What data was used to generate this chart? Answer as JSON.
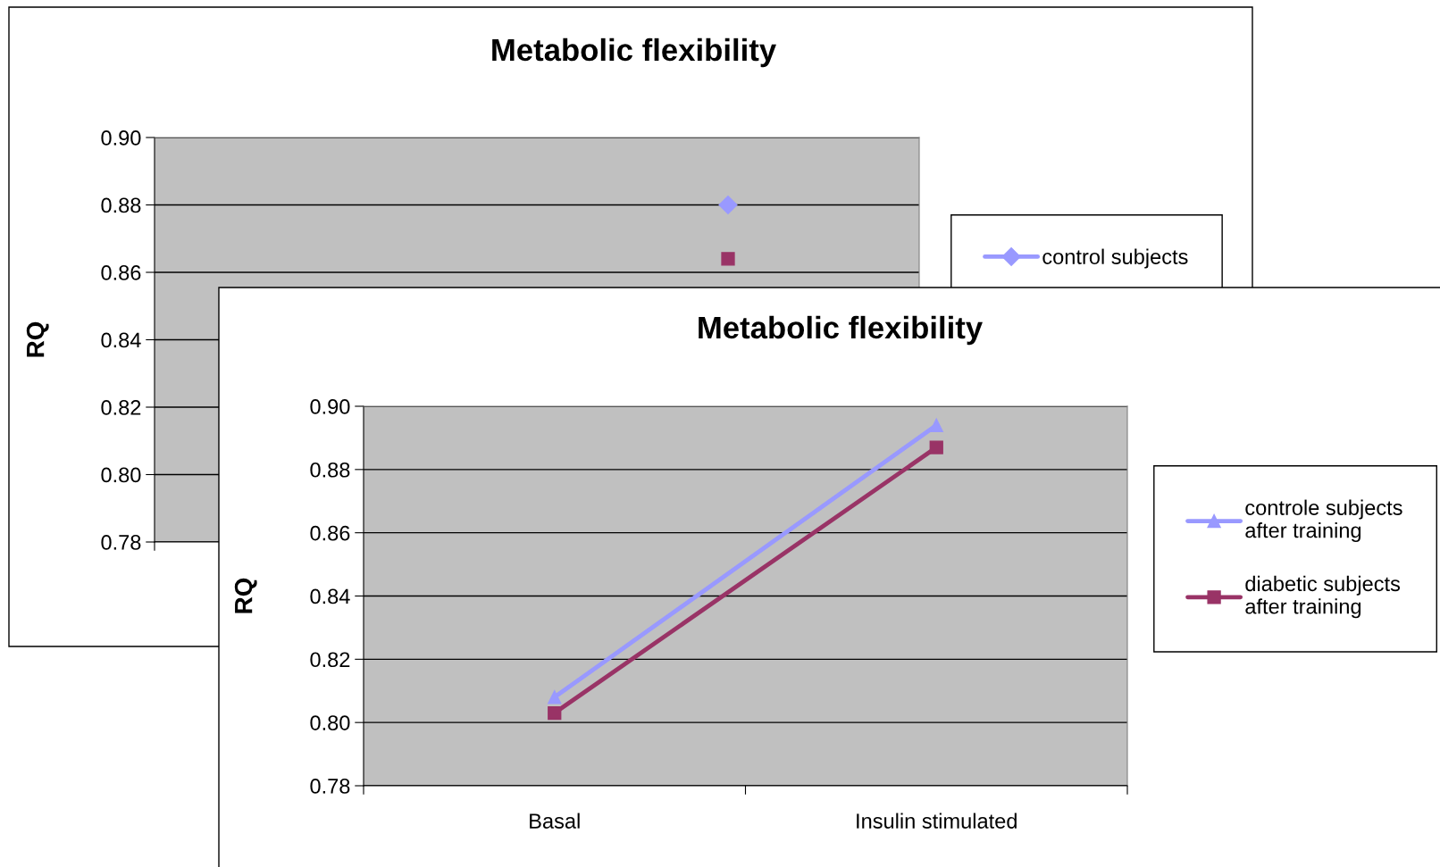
{
  "chart_data": [
    {
      "type": "line",
      "title": "Metabolic flexibility",
      "ylabel": "RQ",
      "categories": [
        null,
        null
      ],
      "ylim": [
        0.78,
        0.9
      ],
      "yticks": [
        {
          "value": 0.78,
          "label": "0.78"
        },
        {
          "value": 0.8,
          "label": "0.80"
        },
        {
          "value": 0.82,
          "label": "0.82"
        },
        {
          "value": 0.84,
          "label": "0.84"
        },
        {
          "value": 0.86,
          "label": "0.86"
        },
        {
          "value": 0.88,
          "label": "0.88"
        },
        {
          "value": 0.9,
          "label": "0.90"
        }
      ],
      "grid": "y",
      "legend": "right",
      "tick_labels": "y",
      "series": [
        {
          "name": "control subjects",
          "color": "#9999ff",
          "marker": "diamond",
          "values": [
            null,
            0.88
          ]
        },
        {
          "color": "#993366",
          "marker": "square",
          "values": [
            null,
            0.864
          ]
        }
      ]
    },
    {
      "type": "line",
      "title": "Metabolic flexibility",
      "ylabel": "RQ",
      "categories": [
        "Basal",
        "Insulin stimulated"
      ],
      "ylim": [
        0.78,
        0.9
      ],
      "yticks": [
        {
          "value": 0.78,
          "label": "0.78"
        },
        {
          "value": 0.8,
          "label": "0.80"
        },
        {
          "value": 0.82,
          "label": "0.82"
        },
        {
          "value": 0.84,
          "label": "0.84"
        },
        {
          "value": 0.86,
          "label": "0.86"
        },
        {
          "value": 0.88,
          "label": "0.88"
        },
        {
          "value": 0.9,
          "label": "0.90"
        }
      ],
      "grid": "y",
      "legend": "right",
      "series": [
        {
          "name": "controle subjects after training",
          "color": "#9999ff",
          "marker": "triangle",
          "values": [
            0.808,
            0.894
          ]
        },
        {
          "name": "diabetic subjects after training",
          "color": "#993366",
          "marker": "square",
          "values": [
            0.803,
            0.887
          ]
        }
      ]
    }
  ]
}
